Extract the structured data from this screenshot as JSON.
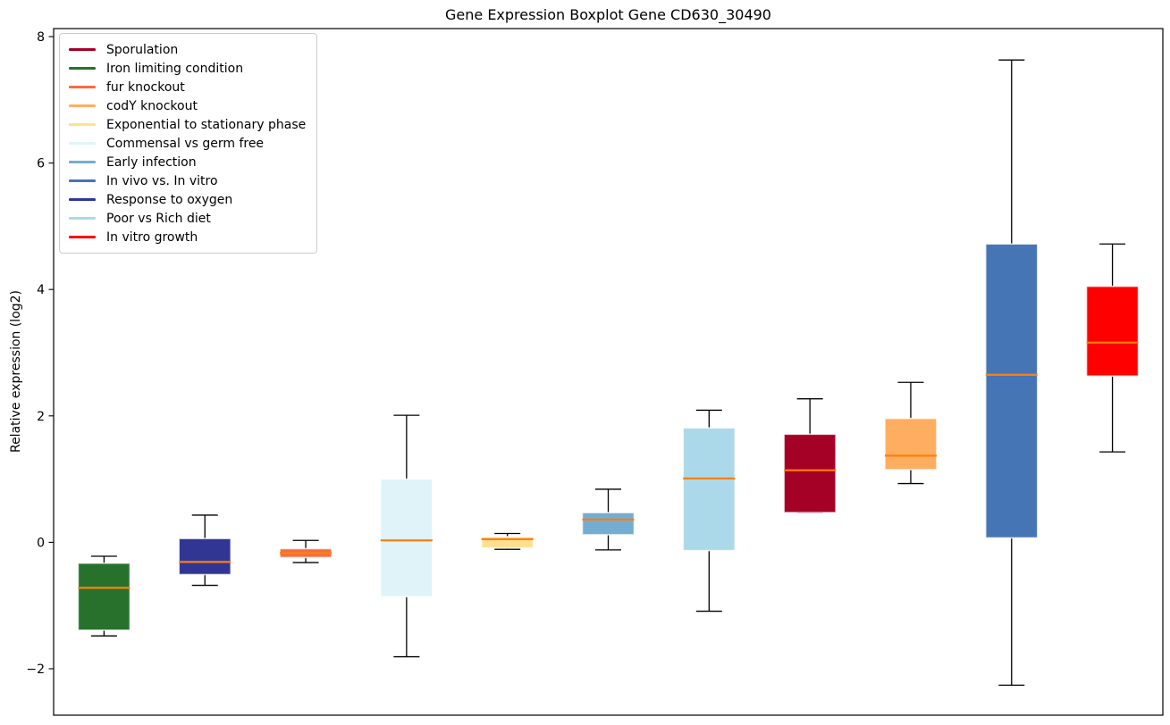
{
  "chart_data": {
    "type": "boxplot",
    "title": "Gene Expression Boxplot Gene CD630_30490",
    "xlabel": "",
    "ylabel": "Relative expression (log2)",
    "ylim": [
      -2.75,
      8.15
    ],
    "yticks": [
      -2,
      0,
      2,
      4,
      6,
      8
    ],
    "grid": false,
    "legend_position": "upper-left",
    "median_color": "#ff7f0e",
    "whisker_color": "#000000",
    "legend": [
      {
        "label": "Sporulation",
        "color": "#a50026"
      },
      {
        "label": "Iron limiting condition",
        "color": "#27712c"
      },
      {
        "label": "fur knockout",
        "color": "#f46d43"
      },
      {
        "label": "codY knockout",
        "color": "#fdae61"
      },
      {
        "label": "Exponential to stationary phase",
        "color": "#fee090"
      },
      {
        "label": "Commensal vs germ free",
        "color": "#e0f3f8"
      },
      {
        "label": "Early infection",
        "color": "#74add1"
      },
      {
        "label": "In vivo vs. In vitro",
        "color": "#4575b4"
      },
      {
        "label": "Response to oxygen",
        "color": "#313695"
      },
      {
        "label": "Poor vs Rich diet",
        "color": "#abd9e9"
      },
      {
        "label": "In vitro growth",
        "color": "#ff0000"
      }
    ],
    "boxes": [
      {
        "condition": "Iron limiting condition",
        "color": "#27712c",
        "whisker_low": -1.48,
        "q1": -1.39,
        "median": -0.72,
        "q3": -0.33,
        "whisker_high": -0.22
      },
      {
        "condition": "Response to oxygen",
        "color": "#313695",
        "whisker_low": -0.68,
        "q1": -0.51,
        "median": -0.31,
        "q3": 0.06,
        "whisker_high": 0.43
      },
      {
        "condition": "fur knockout",
        "color": "#f46d43",
        "whisker_low": -0.32,
        "q1": -0.24,
        "median": -0.17,
        "q3": -0.1,
        "whisker_high": 0.03
      },
      {
        "condition": "Commensal vs germ free",
        "color": "#e0f3f8",
        "whisker_low": -1.81,
        "q1": -0.86,
        "median": 0.03,
        "q3": 1.0,
        "whisker_high": 2.01
      },
      {
        "condition": "Exponential to stationary phase",
        "color": "#fee090",
        "whisker_low": -0.11,
        "q1": -0.09,
        "median": 0.05,
        "q3": 0.09,
        "whisker_high": 0.14
      },
      {
        "condition": "Early infection",
        "color": "#74add1",
        "whisker_low": -0.12,
        "q1": 0.12,
        "median": 0.36,
        "q3": 0.47,
        "whisker_high": 0.84
      },
      {
        "condition": "Poor vs Rich diet",
        "color": "#abd9e9",
        "whisker_low": -1.09,
        "q1": -0.13,
        "median": 1.01,
        "q3": 1.81,
        "whisker_high": 2.09
      },
      {
        "condition": "Sporulation",
        "color": "#a50026",
        "whisker_low": 0.47,
        "q1": 0.47,
        "median": 1.14,
        "q3": 1.71,
        "whisker_high": 2.27
      },
      {
        "condition": "codY knockout",
        "color": "#fdae61",
        "whisker_low": 0.93,
        "q1": 1.15,
        "median": 1.37,
        "q3": 1.96,
        "whisker_high": 2.53
      },
      {
        "condition": "In vivo vs. In vitro",
        "color": "#4575b4",
        "whisker_low": -2.26,
        "q1": 0.07,
        "median": 2.65,
        "q3": 4.72,
        "whisker_high": 7.63
      },
      {
        "condition": "In vitro growth",
        "color": "#ff0000",
        "whisker_low": 1.43,
        "q1": 2.63,
        "median": 3.16,
        "q3": 4.05,
        "whisker_high": 4.72
      }
    ]
  }
}
